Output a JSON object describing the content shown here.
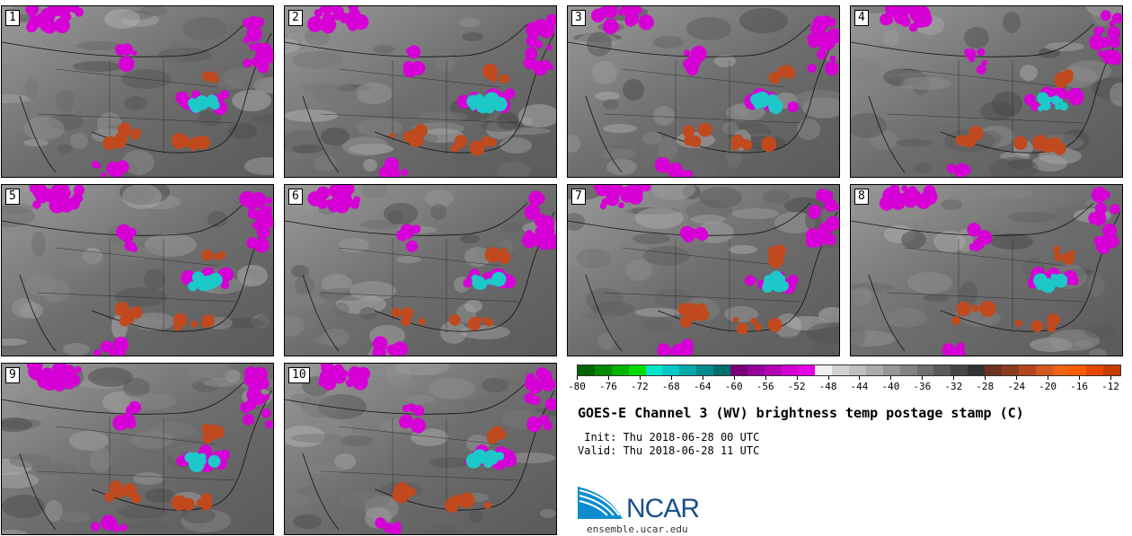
{
  "stamps": [
    "1",
    "2",
    "3",
    "4",
    "5",
    "6",
    "7",
    "8",
    "9",
    "10"
  ],
  "colorbar": {
    "colors": [
      "#006400",
      "#008c00",
      "#00b400",
      "#00dc00",
      "#00e6c8",
      "#00c8c8",
      "#00aaaa",
      "#008c8c",
      "#006e6e",
      "#780078",
      "#96009b",
      "#b400b4",
      "#d200d2",
      "#e600e6",
      "#f0f0f0",
      "#d2d2d2",
      "#bebebe",
      "#aaaaaa",
      "#969696",
      "#828282",
      "#6e6e6e",
      "#5a5a5a",
      "#464646",
      "#323232",
      "#6e321e",
      "#8c3c1e",
      "#b4461e",
      "#d25a1e",
      "#f06414",
      "#ff5a00",
      "#e64600",
      "#c83c00"
    ],
    "ticks": [
      "-80",
      "-76",
      "-72",
      "-68",
      "-64",
      "-60",
      "-56",
      "-52",
      "-48",
      "-44",
      "-40",
      "-36",
      "-32",
      "-28",
      "-24",
      "-20",
      "-16",
      "-12"
    ]
  },
  "title": "GOES-E Channel 3 (WV) brightness temp postage stamp (C)",
  "init": " Init: Thu 2018-06-28 00 UTC",
  "valid": "Valid: Thu 2018-06-28 11 UTC",
  "logo": {
    "text": "NCAR",
    "site": "ensemble.ucar.edu",
    "color": "#1c4f8a",
    "accent": "#0a8ccf"
  },
  "palette": {
    "magenta": "#d600d6",
    "cyan": "#1cc8c8",
    "orange": "#c04a1e",
    "land": "#6b6b6b"
  }
}
